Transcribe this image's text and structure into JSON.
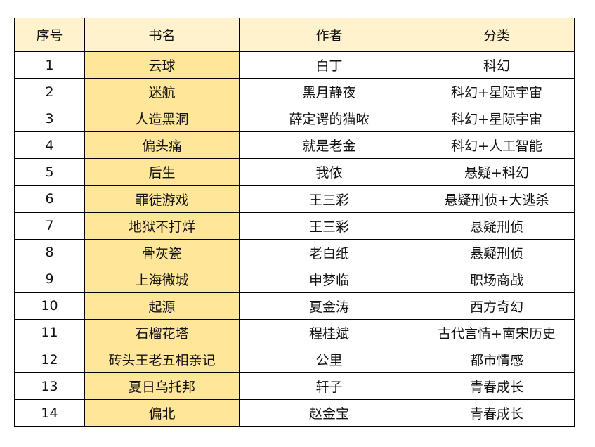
{
  "colors": {
    "header_bg": "#FFF2CC",
    "book_column_bg": "#FFE699",
    "border": "#000000"
  },
  "table": {
    "headers": [
      "序号",
      "书名",
      "作者",
      "分类"
    ],
    "rows": [
      [
        "1",
        "云球",
        "白丁",
        "科幻"
      ],
      [
        "2",
        "迷航",
        "黑月静夜",
        "科幻+星际宇宙"
      ],
      [
        "3",
        "人造黑洞",
        "薛定谔的猫哝",
        "科幻+星际宇宙"
      ],
      [
        "4",
        "偏头痛",
        "就是老金",
        "科幻+人工智能"
      ],
      [
        "5",
        "后生",
        "我侬",
        "悬疑+科幻"
      ],
      [
        "6",
        "罪徒游戏",
        "王三彩",
        "悬疑刑侦+大逃杀"
      ],
      [
        "7",
        "地狱不打烊",
        "王三彩",
        "悬疑刑侦"
      ],
      [
        "8",
        "骨灰瓷",
        "老白纸",
        "悬疑刑侦"
      ],
      [
        "9",
        "上海微城",
        "申梦临",
        "职场商战"
      ],
      [
        "10",
        "起源",
        "夏金涛",
        "西方奇幻"
      ],
      [
        "11",
        "石榴花塔",
        "程桂斌",
        "古代言情+南宋历史"
      ],
      [
        "12",
        "砖头王老五相亲记",
        "公里",
        "都市情感"
      ],
      [
        "13",
        "夏日乌托邦",
        "轩子",
        "青春成长"
      ],
      [
        "14",
        "偏北",
        "赵金宝",
        "青春成长"
      ]
    ]
  }
}
